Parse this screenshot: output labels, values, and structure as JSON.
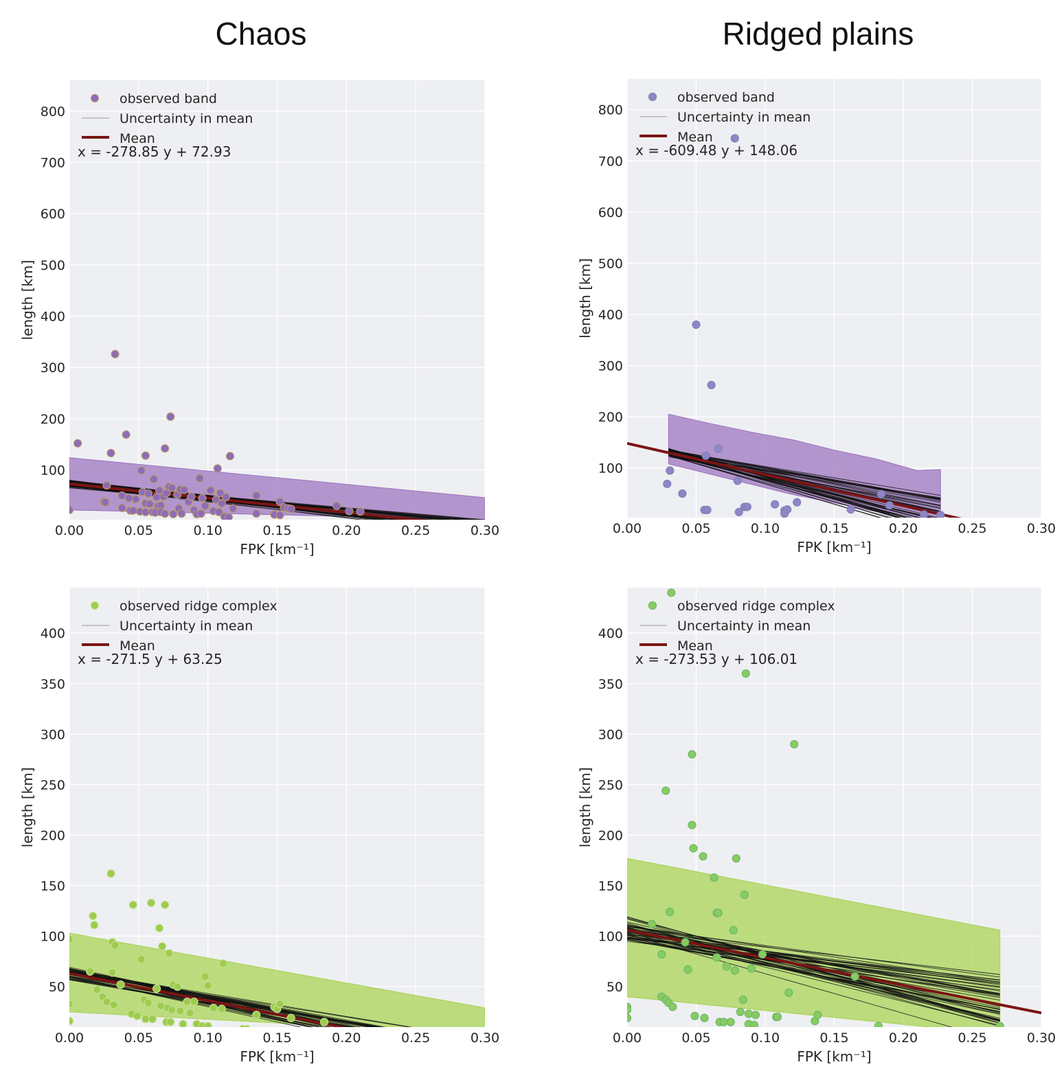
{
  "column_titles": [
    "Chaos",
    "Ridged plains"
  ],
  "colors": {
    "band": "#8e6bb8",
    "band_fill": "#9b72be",
    "band_edge": "#b59a6a",
    "band_rp_marker": "#8f86c6",
    "ridge": "#9ccc4e",
    "ridge_fill": "#a7d24f",
    "ridge_rp_marker": "#86cc60",
    "mean": "#7b1414",
    "uncertainty": "#111111",
    "axes_bg": "#eeeff2",
    "grid": "#ffffff"
  },
  "chart_data": [
    {
      "id": "chaos-band",
      "type": "scatter",
      "xlabel": "FPK [km⁻¹]",
      "ylabel": "length [km]",
      "xlim": [
        0,
        0.3
      ],
      "ylim": [
        3,
        860
      ],
      "xticks": [
        0.0,
        0.05,
        0.1,
        0.15,
        0.2,
        0.25,
        0.3
      ],
      "xtick_labels": [
        "0.00",
        "0.05",
        "0.10",
        "0.15",
        "0.20",
        "0.25",
        "0.30"
      ],
      "yticks": [
        100,
        200,
        300,
        400,
        500,
        600,
        700,
        800
      ],
      "grid": true,
      "legend_position": "upper-left",
      "legend": [
        "observed band",
        "Uncertainty in mean",
        "Mean"
      ],
      "equation": "x = -278.85 y + 72.93",
      "mean_line": {
        "slope": -278.85,
        "intercept": 72.93,
        "x_range": [
          0,
          0.3
        ]
      },
      "hdi": {
        "x": [
          0,
          0.3
        ],
        "upper": [
          124,
          46
        ],
        "lower": [
          22,
          3
        ]
      },
      "series": [
        {
          "name": "observed band",
          "points": [
            [
              0.0,
              22
            ],
            [
              0.006,
              152
            ],
            [
              0.03,
              133
            ],
            [
              0.033,
              326
            ],
            [
              0.041,
              169
            ],
            [
              0.055,
              128
            ],
            [
              0.052,
              99
            ],
            [
              0.069,
              142
            ],
            [
              0.073,
              204
            ],
            [
              0.027,
              70
            ],
            [
              0.025,
              38
            ],
            [
              0.026,
              37
            ],
            [
              0.038,
              50
            ],
            [
              0.038,
              26
            ],
            [
              0.043,
              45
            ],
            [
              0.044,
              21
            ],
            [
              0.046,
              21
            ],
            [
              0.048,
              43
            ],
            [
              0.051,
              19
            ],
            [
              0.053,
              57
            ],
            [
              0.055,
              18
            ],
            [
              0.055,
              35
            ],
            [
              0.057,
              54
            ],
            [
              0.058,
              34
            ],
            [
              0.06,
              18
            ],
            [
              0.061,
              82
            ],
            [
              0.062,
              17
            ],
            [
              0.063,
              47
            ],
            [
              0.064,
              30
            ],
            [
              0.065,
              60
            ],
            [
              0.066,
              31
            ],
            [
              0.066,
              18
            ],
            [
              0.068,
              48
            ],
            [
              0.069,
              15
            ],
            [
              0.07,
              55
            ],
            [
              0.072,
              67
            ],
            [
              0.074,
              65
            ],
            [
              0.075,
              14
            ],
            [
              0.078,
              52
            ],
            [
              0.079,
              25
            ],
            [
              0.08,
              62
            ],
            [
              0.081,
              15
            ],
            [
              0.083,
              61
            ],
            [
              0.086,
              38
            ],
            [
              0.088,
              48
            ],
            [
              0.09,
              22
            ],
            [
              0.092,
              14
            ],
            [
              0.094,
              84
            ],
            [
              0.095,
              15
            ],
            [
              0.096,
              45
            ],
            [
              0.098,
              30
            ],
            [
              0.102,
              60
            ],
            [
              0.104,
              20
            ],
            [
              0.106,
              42
            ],
            [
              0.107,
              103
            ],
            [
              0.108,
              18
            ],
            [
              0.109,
              55
            ],
            [
              0.11,
              35
            ],
            [
              0.112,
              9
            ],
            [
              0.113,
              47
            ],
            [
              0.115,
              8
            ],
            [
              0.116,
              127
            ],
            [
              0.118,
              25
            ],
            [
              0.135,
              50
            ],
            [
              0.135,
              15
            ],
            [
              0.148,
              13
            ],
            [
              0.152,
              38
            ],
            [
              0.152,
              12
            ],
            [
              0.155,
              27
            ],
            [
              0.158,
              25
            ],
            [
              0.16,
              24
            ],
            [
              0.193,
              30
            ],
            [
              0.202,
              20
            ],
            [
              0.21,
              19
            ]
          ]
        }
      ]
    },
    {
      "id": "ridged-band",
      "type": "scatter",
      "xlabel": "FPK [km⁻¹]",
      "ylabel": "length [km]",
      "xlim": [
        0,
        0.3
      ],
      "ylim": [
        3,
        860
      ],
      "xticks": [
        0.0,
        0.05,
        0.1,
        0.15,
        0.2,
        0.25,
        0.3
      ],
      "xtick_labels": [
        "0.00",
        "0.05",
        "0.10",
        "0.15",
        "0.20",
        "0.25",
        "0.30"
      ],
      "yticks": [
        100,
        200,
        300,
        400,
        500,
        600,
        700,
        800
      ],
      "grid": true,
      "legend_position": "upper-left",
      "legend": [
        "observed band",
        "Uncertainty in mean",
        "Mean"
      ],
      "equation": "x = -609.48 y + 148.06",
      "mean_line": {
        "slope": -609.48,
        "intercept": 148.06,
        "x_range": [
          0,
          0.3
        ]
      },
      "hdi": {
        "x": [
          0.03,
          0.06,
          0.09,
          0.12,
          0.15,
          0.18,
          0.21,
          0.227
        ],
        "upper": [
          205,
          187,
          170,
          155,
          135,
          118,
          95,
          97
        ],
        "lower": [
          108,
          88,
          68,
          48,
          32,
          15,
          3,
          3
        ]
      },
      "series": [
        {
          "name": "observed band",
          "points": [
            [
              0.029,
              69
            ],
            [
              0.031,
              95
            ],
            [
              0.04,
              50
            ],
            [
              0.05,
              380
            ],
            [
              0.056,
              18
            ],
            [
              0.057,
              124
            ],
            [
              0.058,
              18
            ],
            [
              0.061,
              262
            ],
            [
              0.066,
              138
            ],
            [
              0.078,
              744
            ],
            [
              0.08,
              75
            ],
            [
              0.081,
              14
            ],
            [
              0.085,
              24
            ],
            [
              0.087,
              24
            ],
            [
              0.107,
              29
            ],
            [
              0.114,
              17
            ],
            [
              0.114,
              11
            ],
            [
              0.116,
              19
            ],
            [
              0.123,
              33
            ],
            [
              0.162,
              19
            ],
            [
              0.184,
              49
            ],
            [
              0.19,
              27
            ],
            [
              0.215,
              9
            ],
            [
              0.227,
              8
            ]
          ]
        }
      ]
    },
    {
      "id": "chaos-ridge",
      "type": "scatter",
      "xlabel": "FPK [km⁻¹]",
      "ylabel": "length [km]",
      "xlim": [
        0,
        0.3
      ],
      "ylim": [
        10,
        445
      ],
      "xticks": [
        0.0,
        0.05,
        0.1,
        0.15,
        0.2,
        0.25,
        0.3
      ],
      "xtick_labels": [
        "0.00",
        "0.05",
        "0.10",
        "0.15",
        "0.20",
        "0.25",
        "0.30"
      ],
      "yticks": [
        50,
        100,
        150,
        200,
        250,
        300,
        350,
        400
      ],
      "grid": true,
      "legend_position": "upper-left",
      "legend": [
        "observed ridge complex",
        "Uncertainty in mean",
        "Mean"
      ],
      "equation": "x = -271.5 y + 63.25",
      "mean_line": {
        "slope": -271.5,
        "intercept": 63.25,
        "x_range": [
          0,
          0.3
        ]
      },
      "hdi": {
        "x": [
          0,
          0.3
        ],
        "upper": [
          103,
          29
        ],
        "lower": [
          25,
          3
        ]
      },
      "series": [
        {
          "name": "observed ridge complex",
          "points": [
            [
              0.0,
              97
            ],
            [
              0.0,
              33
            ],
            [
              0.0,
              16
            ],
            [
              0.015,
              65
            ],
            [
              0.017,
              120
            ],
            [
              0.018,
              111
            ],
            [
              0.02,
              47
            ],
            [
              0.024,
              40
            ],
            [
              0.027,
              35
            ],
            [
              0.03,
              162
            ],
            [
              0.031,
              64
            ],
            [
              0.031,
              94
            ],
            [
              0.032,
              32
            ],
            [
              0.033,
              91
            ],
            [
              0.037,
              52
            ],
            [
              0.045,
              23
            ],
            [
              0.046,
              131
            ],
            [
              0.049,
              21
            ],
            [
              0.052,
              77
            ],
            [
              0.054,
              37
            ],
            [
              0.055,
              18
            ],
            [
              0.057,
              34
            ],
            [
              0.059,
              133
            ],
            [
              0.06,
              18
            ],
            [
              0.063,
              48
            ],
            [
              0.065,
              108
            ],
            [
              0.066,
              31
            ],
            [
              0.067,
              90
            ],
            [
              0.069,
              131
            ],
            [
              0.07,
              15
            ],
            [
              0.071,
              29
            ],
            [
              0.072,
              83
            ],
            [
              0.073,
              15
            ],
            [
              0.074,
              27
            ],
            [
              0.075,
              52
            ],
            [
              0.078,
              50
            ],
            [
              0.08,
              26
            ],
            [
              0.082,
              13
            ],
            [
              0.085,
              35
            ],
            [
              0.087,
              24
            ],
            [
              0.09,
              35
            ],
            [
              0.092,
              13
            ],
            [
              0.096,
              11
            ],
            [
              0.098,
              60
            ],
            [
              0.1,
              51
            ],
            [
              0.1,
              11
            ],
            [
              0.104,
              29
            ],
            [
              0.11,
              28
            ],
            [
              0.111,
              73
            ],
            [
              0.125,
              8
            ],
            [
              0.128,
              8
            ],
            [
              0.135,
              22
            ],
            [
              0.148,
              30
            ],
            [
              0.15,
              28
            ],
            [
              0.152,
              33
            ],
            [
              0.16,
              19
            ],
            [
              0.184,
              15
            ]
          ]
        }
      ]
    },
    {
      "id": "ridged-ridge",
      "type": "scatter",
      "xlabel": "FPK [km⁻¹]",
      "ylabel": "length [km]",
      "xlim": [
        0,
        0.3
      ],
      "ylim": [
        10,
        445
      ],
      "xticks": [
        0.0,
        0.05,
        0.1,
        0.15,
        0.2,
        0.25,
        0.3
      ],
      "xtick_labels": [
        "0.00",
        "0.05",
        "0.10",
        "0.15",
        "0.20",
        "0.25",
        "0.30"
      ],
      "yticks": [
        50,
        100,
        150,
        200,
        250,
        300,
        350,
        400
      ],
      "grid": true,
      "legend_position": "upper-left",
      "legend": [
        "observed ridge complex",
        "Uncertainty in mean",
        "Mean"
      ],
      "equation": "x = -273.53 y + 106.01",
      "mean_line": {
        "slope": -273.53,
        "intercept": 106.01,
        "x_range": [
          0,
          0.3
        ]
      },
      "hdi": {
        "x": [
          0,
          0.27
        ],
        "upper": [
          177,
          106
        ],
        "lower": [
          40,
          3
        ]
      },
      "series": [
        {
          "name": "observed ridge complex",
          "points": [
            [
              0.0,
              30
            ],
            [
              0.0,
              27
            ],
            [
              0.0,
              19
            ],
            [
              0.018,
              112
            ],
            [
              0.025,
              82
            ],
            [
              0.025,
              40
            ],
            [
              0.028,
              37
            ],
            [
              0.028,
              244
            ],
            [
              0.03,
              34
            ],
            [
              0.031,
              124
            ],
            [
              0.032,
              440
            ],
            [
              0.033,
              30
            ],
            [
              0.042,
              94
            ],
            [
              0.044,
              67
            ],
            [
              0.047,
              280
            ],
            [
              0.047,
              210
            ],
            [
              0.048,
              187
            ],
            [
              0.049,
              21
            ],
            [
              0.055,
              179
            ],
            [
              0.056,
              19
            ],
            [
              0.063,
              158
            ],
            [
              0.065,
              79
            ],
            [
              0.065,
              123
            ],
            [
              0.066,
              123
            ],
            [
              0.067,
              15
            ],
            [
              0.07,
              15
            ],
            [
              0.072,
              70
            ],
            [
              0.075,
              15
            ],
            [
              0.077,
              106
            ],
            [
              0.078,
              66
            ],
            [
              0.079,
              177
            ],
            [
              0.082,
              25
            ],
            [
              0.084,
              37
            ],
            [
              0.085,
              141
            ],
            [
              0.086,
              360
            ],
            [
              0.088,
              13
            ],
            [
              0.088,
              23
            ],
            [
              0.09,
              68
            ],
            [
              0.092,
              12
            ],
            [
              0.093,
              22
            ],
            [
              0.098,
              82
            ],
            [
              0.108,
              20
            ],
            [
              0.109,
              20
            ],
            [
              0.117,
              44
            ],
            [
              0.121,
              290
            ],
            [
              0.136,
              16
            ],
            [
              0.138,
              22
            ],
            [
              0.165,
              60
            ],
            [
              0.182,
              11
            ],
            [
              0.27,
              11
            ]
          ]
        }
      ]
    }
  ]
}
